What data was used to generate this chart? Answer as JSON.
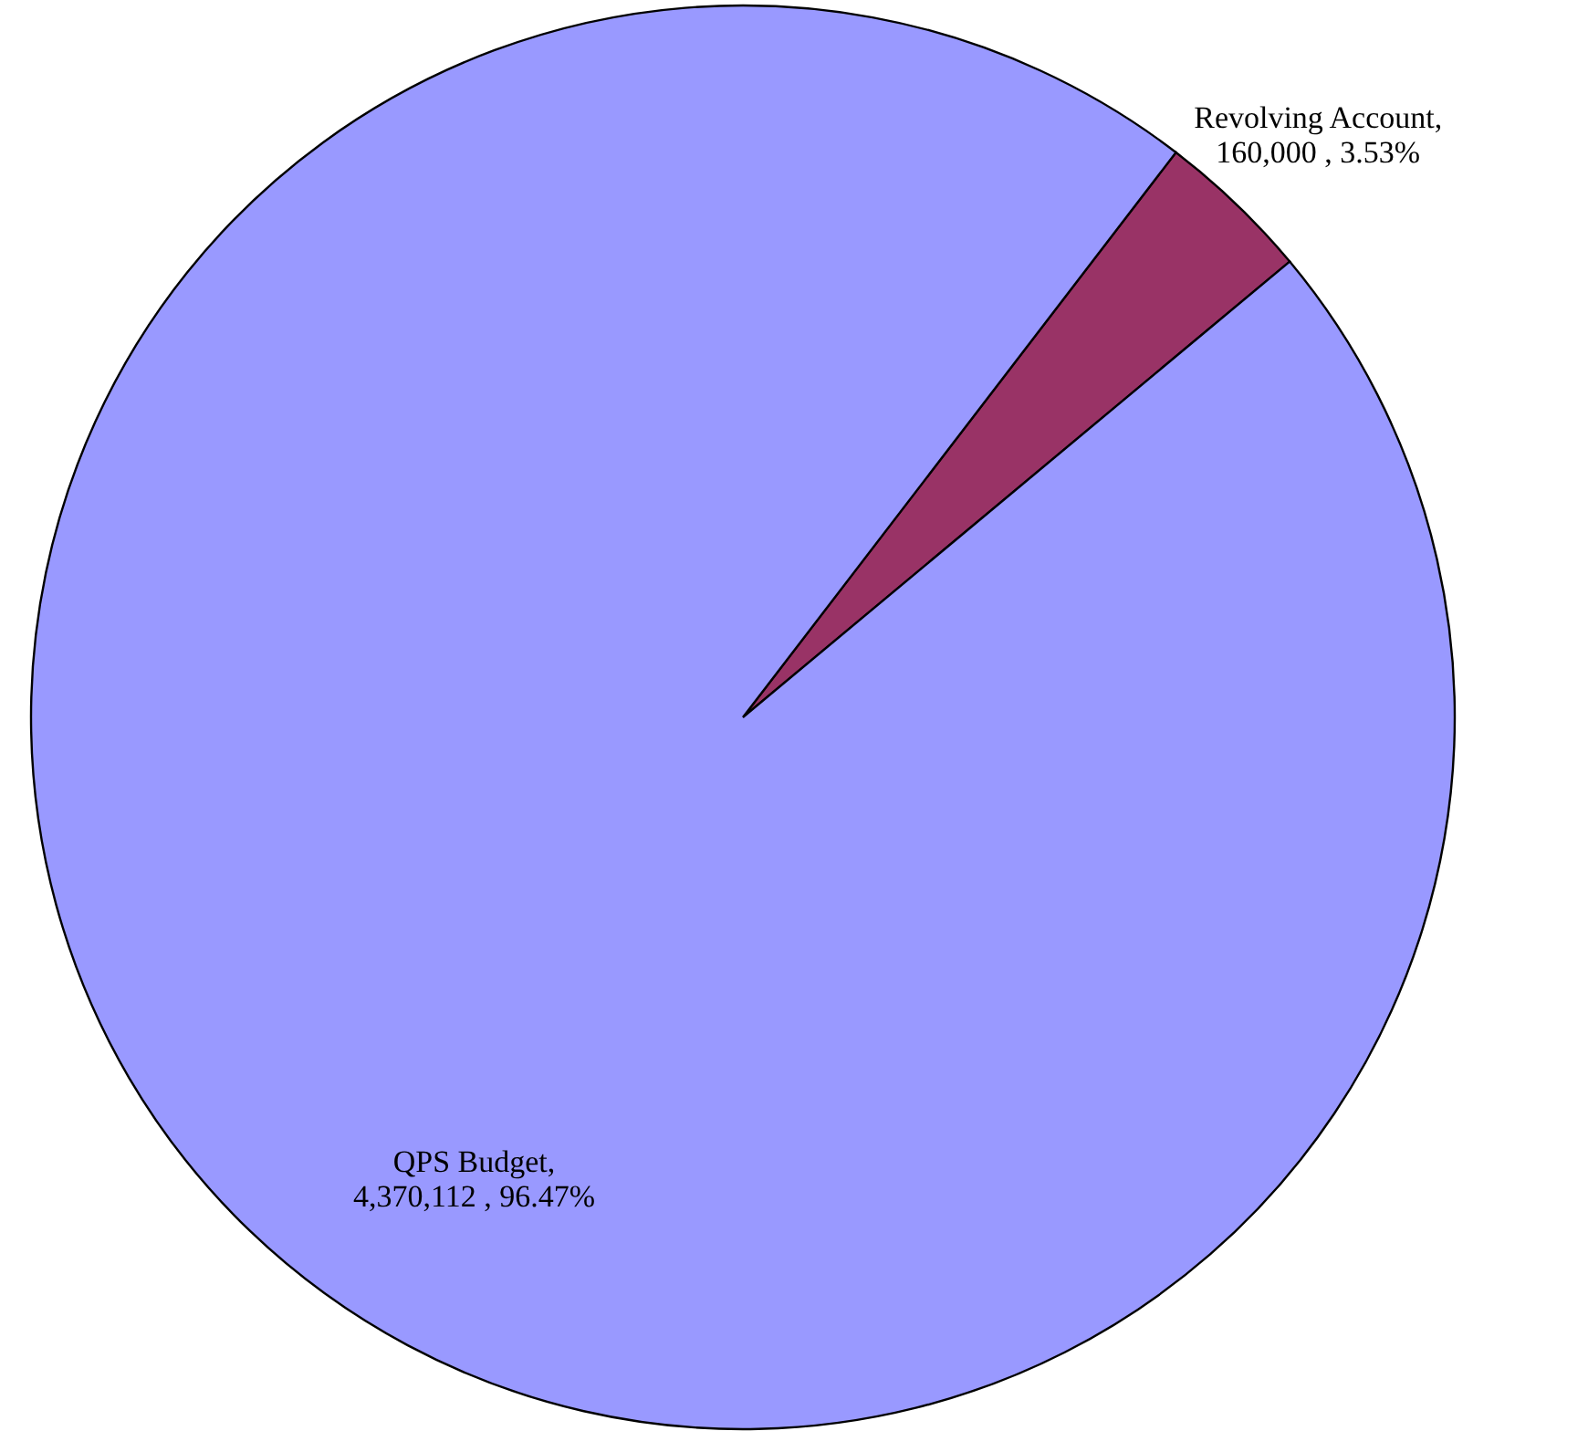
{
  "chart_data": {
    "type": "pie",
    "categories": [
      "Revolving Account",
      "QPS Budget"
    ],
    "values": [
      160000,
      4370112
    ],
    "colors": [
      "#993366",
      "#9999ff"
    ],
    "value_labels": [
      ",\n160,000 , 3.53%",
      ",\n4,370,112 , 96.47%"
    ]
  }
}
